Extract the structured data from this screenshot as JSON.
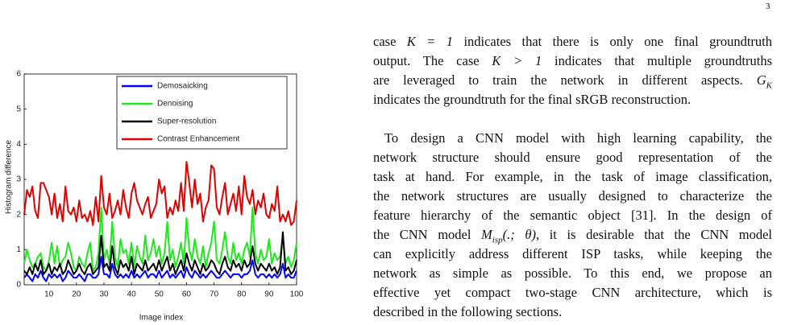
{
  "page_number": "3",
  "chart_data": {
    "type": "line",
    "xlabel": "Image index",
    "ylabel": "Histogram difference",
    "x": [
      1,
      2,
      3,
      4,
      5,
      6,
      7,
      8,
      9,
      10,
      11,
      12,
      13,
      14,
      15,
      16,
      17,
      18,
      19,
      20,
      21,
      22,
      23,
      24,
      25,
      26,
      27,
      28,
      29,
      30,
      31,
      32,
      33,
      34,
      35,
      36,
      37,
      38,
      39,
      40,
      41,
      42,
      43,
      44,
      45,
      46,
      47,
      48,
      49,
      50,
      51,
      52,
      53,
      54,
      55,
      56,
      57,
      58,
      59,
      60,
      61,
      62,
      63,
      64,
      65,
      66,
      67,
      68,
      69,
      70,
      71,
      72,
      73,
      74,
      75,
      76,
      77,
      78,
      79,
      80,
      81,
      82,
      83,
      84,
      85,
      86,
      87,
      88,
      89,
      90,
      91,
      92,
      93,
      94,
      95,
      96,
      97,
      98,
      99,
      100
    ],
    "xlim": [
      1,
      100
    ],
    "xticks": [
      10,
      20,
      30,
      40,
      50,
      60,
      70,
      80,
      90,
      100
    ],
    "ylim": [
      0,
      6
    ],
    "yticks": [
      0,
      1,
      2,
      3,
      4,
      5,
      6
    ],
    "legend": "upper right",
    "series": [
      {
        "name": "Demosaicking",
        "color": "#0000ff",
        "values": [
          0.2,
          0.3,
          0.2,
          0.1,
          0.3,
          0.2,
          0.4,
          0.2,
          0.1,
          0.3,
          0.2,
          0.3,
          0.2,
          0.3,
          0.1,
          0.2,
          0.4,
          0.3,
          0.2,
          0.2,
          0.3,
          0.2,
          0.1,
          0.3,
          0.3,
          0.2,
          0.2,
          0.3,
          0.8,
          0.3,
          0.3,
          0.2,
          0.6,
          0.3,
          0.2,
          0.3,
          0.2,
          0.3,
          0.2,
          0.4,
          0.2,
          0.3,
          0.2,
          0.3,
          0.4,
          0.2,
          0.3,
          0.3,
          0.2,
          0.4,
          0.2,
          0.3,
          0.4,
          0.2,
          0.3,
          0.2,
          0.3,
          0.4,
          0.2,
          0.5,
          0.3,
          0.2,
          0.4,
          0.3,
          0.2,
          0.3,
          0.2,
          0.3,
          0.4,
          0.3,
          0.2,
          0.2,
          0.3,
          0.4,
          0.3,
          0.2,
          0.3,
          0.3,
          0.3,
          0.2,
          0.3,
          0.3,
          0.4,
          0.7,
          0.3,
          0.2,
          0.3,
          0.3,
          0.2,
          0.3,
          0.2,
          0.3,
          0.2,
          0.3,
          0.6,
          0.2,
          0.3,
          0.2,
          0.2,
          0.4
        ]
      },
      {
        "name": "Denoising",
        "color": "#1ee81e",
        "values": [
          0.6,
          1.0,
          0.7,
          0.5,
          0.6,
          0.8,
          0.9,
          0.5,
          0.4,
          0.7,
          1.2,
          0.6,
          1.1,
          0.5,
          0.7,
          0.8,
          1.2,
          0.9,
          0.5,
          0.4,
          0.8,
          0.6,
          0.5,
          0.9,
          1.2,
          0.4,
          0.5,
          0.9,
          2.2,
          0.7,
          1.0,
          0.6,
          1.8,
          0.8,
          0.5,
          1.3,
          0.9,
          1.0,
          0.6,
          1.2,
          0.5,
          1.1,
          0.8,
          0.6,
          1.4,
          0.7,
          0.9,
          1.3,
          0.8,
          1.1,
          0.6,
          0.9,
          1.8,
          0.7,
          1.0,
          0.5,
          0.8,
          1.2,
          0.6,
          1.9,
          1.0,
          0.7,
          1.3,
          0.8,
          0.6,
          1.1,
          0.5,
          0.9,
          1.2,
          1.8,
          0.7,
          0.6,
          1.0,
          1.5,
          0.8,
          0.6,
          1.2,
          0.7,
          0.9,
          0.6,
          1.0,
          1.2,
          0.8,
          2.2,
          0.9,
          0.6,
          1.0,
          0.7,
          0.8,
          1.3,
          0.6,
          0.9,
          0.7,
          0.8,
          1.4,
          0.6,
          0.8,
          0.5,
          0.7,
          1.2
        ]
      },
      {
        "name": "Super-resolution",
        "color": "#000000",
        "values": [
          0.4,
          0.3,
          0.5,
          0.3,
          0.6,
          0.4,
          0.7,
          0.3,
          0.4,
          0.6,
          0.3,
          0.5,
          0.4,
          0.6,
          0.3,
          0.4,
          0.7,
          0.5,
          0.3,
          0.4,
          0.6,
          0.4,
          0.3,
          0.5,
          0.6,
          0.3,
          0.4,
          0.5,
          1.4,
          0.5,
          0.6,
          0.4,
          1.1,
          0.5,
          0.3,
          0.7,
          0.5,
          0.6,
          0.4,
          0.8,
          0.3,
          0.6,
          0.5,
          0.4,
          0.7,
          0.4,
          0.5,
          0.6,
          0.4,
          0.7,
          0.4,
          0.6,
          0.8,
          0.4,
          0.6,
          0.3,
          0.5,
          0.7,
          0.4,
          0.9,
          0.6,
          0.4,
          0.7,
          0.5,
          0.3,
          0.6,
          0.4,
          0.5,
          0.7,
          0.6,
          0.4,
          0.3,
          0.6,
          0.8,
          0.5,
          0.4,
          0.7,
          0.5,
          0.6,
          0.4,
          0.7,
          0.5,
          0.6,
          1.1,
          0.6,
          0.4,
          0.6,
          0.5,
          0.4,
          0.6,
          0.4,
          0.5,
          0.3,
          0.5,
          1.5,
          0.4,
          0.5,
          0.3,
          0.4,
          0.7
        ]
      },
      {
        "name": "Contrast Enhancement",
        "color": "#e00000",
        "values": [
          2.0,
          2.7,
          2.5,
          2.8,
          2.1,
          1.9,
          2.9,
          2.9,
          2.7,
          2.5,
          2.0,
          2.6,
          1.9,
          2.3,
          1.8,
          2.8,
          2.1,
          2.0,
          2.2,
          1.8,
          2.4,
          1.9,
          2.0,
          1.8,
          2.1,
          1.7,
          2.5,
          1.8,
          3.1,
          2.2,
          2.0,
          2.6,
          1.9,
          2.1,
          2.4,
          2.0,
          2.7,
          2.2,
          1.9,
          2.6,
          2.9,
          2.4,
          2.2,
          2.0,
          2.3,
          2.5,
          1.9,
          2.1,
          2.3,
          3.0,
          2.6,
          2.8,
          1.9,
          2.2,
          2.0,
          2.4,
          2.1,
          2.9,
          2.1,
          3.5,
          2.9,
          2.2,
          3.0,
          2.3,
          2.6,
          1.8,
          2.2,
          2.4,
          3.4,
          3.3,
          2.2,
          2.0,
          2.5,
          2.9,
          2.0,
          2.3,
          2.6,
          2.1,
          2.8,
          2.0,
          3.1,
          2.5,
          2.3,
          2.7,
          2.0,
          2.4,
          2.2,
          2.6,
          2.0,
          1.9,
          2.3,
          2.1,
          2.8,
          1.8,
          2.0,
          1.8,
          2.1,
          1.7,
          1.8,
          2.4
        ]
      }
    ]
  },
  "text": {
    "paragraphs": [
      [
        [
          "case ",
          {
            "math": "K = 1"
          },
          " indicates that there is only one final groundtruth"
        ],
        [
          "output. The case ",
          {
            "math": "K > 1"
          },
          " indicates that multiple groundtruths"
        ],
        [
          "are leveraged to train the network in different aspects. ",
          {
            "math": "G",
            "sub": "K"
          }
        ],
        [
          "indicates the groundtruth for the final sRGB reconstruction."
        ]
      ],
      [
        [
          "To design a CNN model with high learning capability, the"
        ],
        [
          "network structure should ensure good representation of the"
        ],
        [
          "task at hand. For example, in the task of image classification,"
        ],
        [
          "the network structures are usually designed to characterize the"
        ],
        [
          "feature hierarchy of the semantic object [31]. In the design of"
        ],
        [
          "the CNN model ",
          {
            "math": "M",
            "sub": "isp"
          },
          {
            "math": "(.; θ)"
          },
          ", it is desirable that the CNN model"
        ],
        [
          "can explicitly address different ISP tasks, while keeping the"
        ],
        [
          "network as simple as possible. To this end, we propose an"
        ],
        [
          "effective yet compact two-stage CNN architecture, which is"
        ],
        [
          "described in the following sections."
        ]
      ]
    ]
  }
}
